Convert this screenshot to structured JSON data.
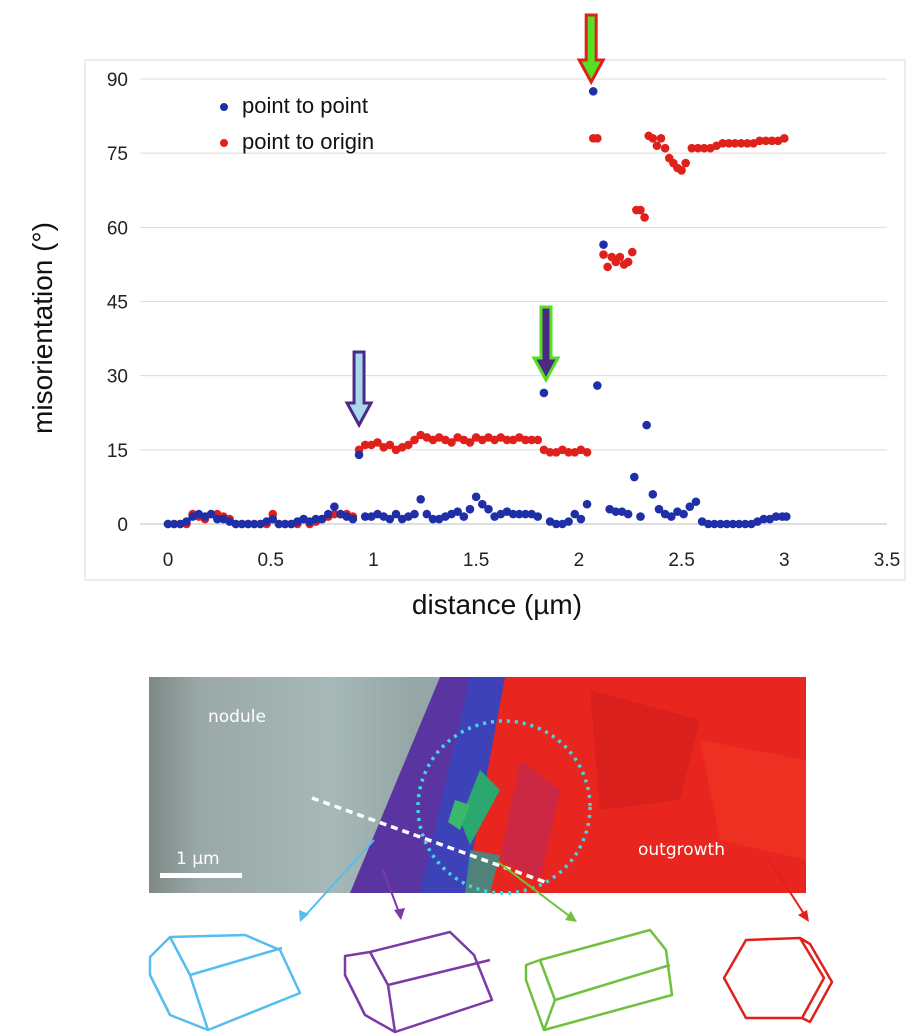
{
  "chart_data": {
    "type": "scatter",
    "xlabel": "distance (µm)",
    "ylabel": "misorientation (°)",
    "xlim": [
      0,
      3.5
    ],
    "ylim": [
      0,
      90
    ],
    "xticks": [
      "0",
      "0.5",
      "1",
      "1.5",
      "2",
      "2.5",
      "3",
      "3.5"
    ],
    "yticks": [
      "0",
      "15",
      "30",
      "45",
      "60",
      "75",
      "90"
    ],
    "grid": "horizontal",
    "legend_position": "top-left",
    "series": [
      {
        "name": "point to point",
        "color": "#1f2fa8",
        "x": [
          0.0,
          0.03,
          0.06,
          0.09,
          0.12,
          0.15,
          0.18,
          0.21,
          0.24,
          0.27,
          0.3,
          0.33,
          0.36,
          0.39,
          0.42,
          0.45,
          0.48,
          0.51,
          0.54,
          0.57,
          0.6,
          0.63,
          0.66,
          0.69,
          0.72,
          0.75,
          0.78,
          0.81,
          0.84,
          0.87,
          0.9,
          0.93,
          0.96,
          0.99,
          1.02,
          1.05,
          1.08,
          1.11,
          1.14,
          1.17,
          1.2,
          1.23,
          1.26,
          1.29,
          1.32,
          1.35,
          1.38,
          1.41,
          1.44,
          1.47,
          1.5,
          1.53,
          1.56,
          1.59,
          1.62,
          1.65,
          1.68,
          1.71,
          1.74,
          1.77,
          1.8,
          1.83,
          1.86,
          1.89,
          1.92,
          1.95,
          1.98,
          2.01,
          2.04,
          2.07,
          2.09,
          2.12,
          2.15,
          2.18,
          2.21,
          2.24,
          2.27,
          2.3,
          2.33,
          2.36,
          2.39,
          2.42,
          2.45,
          2.48,
          2.51,
          2.54,
          2.57,
          2.6,
          2.63,
          2.66,
          2.69,
          2.72,
          2.75,
          2.78,
          2.81,
          2.84,
          2.87,
          2.9,
          2.93,
          2.96,
          2.99,
          3.01
        ],
        "y": [
          0,
          0,
          0,
          0.5,
          1.5,
          2,
          1.5,
          2,
          1,
          1,
          0.5,
          0,
          0,
          0,
          0,
          0,
          0.5,
          1,
          0,
          0,
          0,
          0.5,
          1,
          0.5,
          1,
          1,
          2,
          3.5,
          2,
          1.5,
          1,
          14,
          1.5,
          1.5,
          2,
          1.5,
          1,
          2,
          1,
          1.5,
          2,
          5,
          2,
          1,
          1,
          1.5,
          2,
          2.5,
          1.5,
          3,
          5.5,
          4,
          3,
          1.5,
          2,
          2.5,
          2,
          2,
          2,
          2,
          1.5,
          26.5,
          0.5,
          0,
          0,
          0.5,
          2,
          1,
          4,
          87.5,
          28,
          56.5,
          3,
          2.5,
          2.5,
          2,
          9.5,
          1.5,
          20,
          6,
          3,
          2,
          1.5,
          2.5,
          2,
          3.5,
          4.5,
          0.5,
          0,
          0,
          0,
          0,
          0,
          0,
          0,
          0,
          0.5,
          1,
          1,
          1.5,
          1.5,
          1.5
        ]
      },
      {
        "name": "point to origin",
        "color": "#e0201a",
        "x": [
          0.0,
          0.03,
          0.06,
          0.09,
          0.12,
          0.15,
          0.18,
          0.21,
          0.24,
          0.27,
          0.3,
          0.33,
          0.36,
          0.39,
          0.42,
          0.45,
          0.48,
          0.51,
          0.54,
          0.57,
          0.6,
          0.63,
          0.66,
          0.69,
          0.72,
          0.75,
          0.78,
          0.81,
          0.84,
          0.87,
          0.9,
          0.93,
          0.96,
          0.99,
          1.02,
          1.05,
          1.08,
          1.11,
          1.14,
          1.17,
          1.2,
          1.23,
          1.26,
          1.29,
          1.32,
          1.35,
          1.38,
          1.41,
          1.44,
          1.47,
          1.5,
          1.53,
          1.56,
          1.59,
          1.62,
          1.65,
          1.68,
          1.71,
          1.74,
          1.77,
          1.8,
          1.83,
          1.86,
          1.89,
          1.92,
          1.95,
          1.98,
          2.01,
          2.04,
          2.07,
          2.09,
          2.12,
          2.14,
          2.16,
          2.18,
          2.2,
          2.22,
          2.24,
          2.26,
          2.28,
          2.3,
          2.32,
          2.34,
          2.36,
          2.38,
          2.4,
          2.42,
          2.44,
          2.46,
          2.48,
          2.5,
          2.52,
          2.55,
          2.58,
          2.61,
          2.64,
          2.67,
          2.7,
          2.73,
          2.76,
          2.79,
          2.82,
          2.85,
          2.88,
          2.91,
          2.94,
          2.97,
          3.0
        ],
        "y": [
          0,
          0,
          0,
          0,
          2,
          1.5,
          1,
          2,
          2,
          1.5,
          1,
          0,
          0,
          0,
          0,
          0,
          0,
          2,
          0,
          0,
          0,
          0,
          1,
          0,
          0.5,
          1,
          1.5,
          2,
          2,
          2,
          1.5,
          15,
          16,
          16,
          16.5,
          15.5,
          16,
          15,
          15.5,
          16,
          17,
          18,
          17.5,
          17,
          17.5,
          17,
          16.5,
          17.5,
          17,
          16.5,
          17.5,
          17,
          17.5,
          17,
          17.5,
          17,
          17,
          17.5,
          17,
          17,
          17,
          15,
          14.5,
          14.5,
          15,
          14.5,
          14.5,
          15,
          14.5,
          78,
          78,
          54.5,
          52,
          54,
          53,
          54,
          52.5,
          53,
          55,
          63.5,
          63.5,
          62,
          78.5,
          78,
          76.5,
          78,
          76,
          74,
          73,
          72,
          71.5,
          73,
          76,
          76,
          76,
          76,
          76.5,
          77,
          77,
          77,
          77,
          77,
          77,
          77.5,
          77.5,
          77.5,
          77.5,
          78
        ]
      }
    ],
    "arrows": [
      {
        "x": 0.93,
        "fill": "#a7d8ec",
        "stroke": "#4b2a83"
      },
      {
        "x": 1.84,
        "fill": "#4b2a83",
        "stroke": "#56e024"
      },
      {
        "x": 2.06,
        "fill": "#56e024",
        "stroke": "#e0201a"
      }
    ]
  },
  "image_labels": {
    "nodule": "nodule",
    "outgrowth": "outgrowth",
    "scale": "1 µm"
  }
}
